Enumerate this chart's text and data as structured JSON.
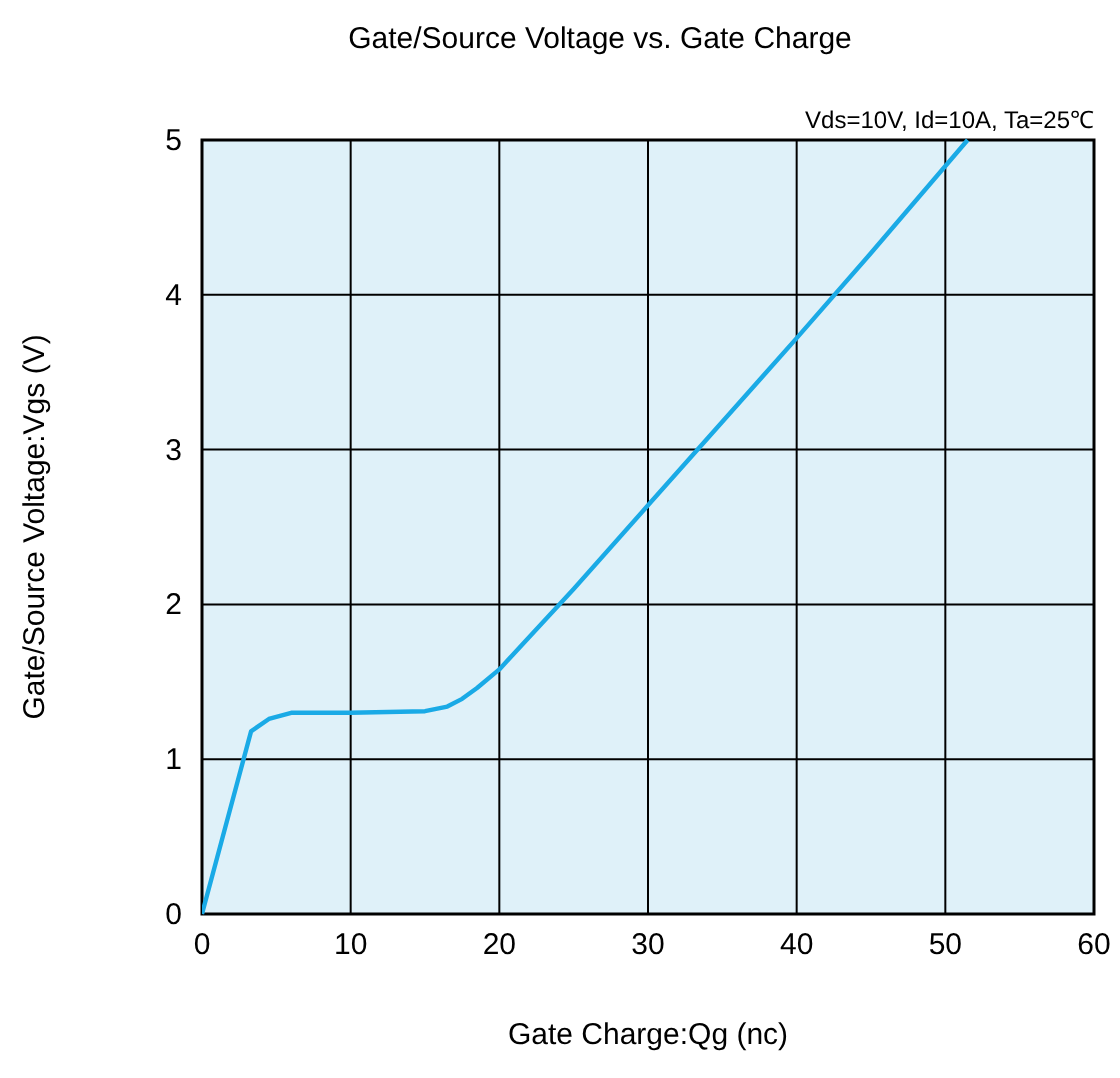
{
  "chart_data": {
    "type": "line",
    "title": "Gate/Source Voltage  vs.  Gate Charge",
    "xlabel": "Gate Charge:Qg  (nc)",
    "ylabel": "Gate/Source Voltage:Vgs  (V)",
    "annotations": [
      "Vds=10V, Id=10A, Ta=25℃"
    ],
    "series": [
      {
        "color": "#1aaae6",
        "x": [
          0,
          3.3,
          4.5,
          6,
          10,
          15,
          16.5,
          17.5,
          18.5,
          20,
          25,
          30,
          35,
          40,
          45,
          51.5
        ],
        "values": [
          0,
          1.18,
          1.26,
          1.3,
          1.3,
          1.31,
          1.34,
          1.39,
          1.46,
          1.58,
          2.1,
          2.64,
          3.18,
          3.72,
          4.27,
          5
        ]
      }
    ],
    "xlim": [
      0,
      60
    ],
    "xticks": [
      0,
      10,
      20,
      30,
      40,
      50,
      60
    ],
    "ylim": [
      0,
      5
    ],
    "yticks": [
      0,
      1,
      2,
      3,
      4,
      5
    ],
    "grid": true,
    "marker": "none",
    "line_style": "solid"
  }
}
